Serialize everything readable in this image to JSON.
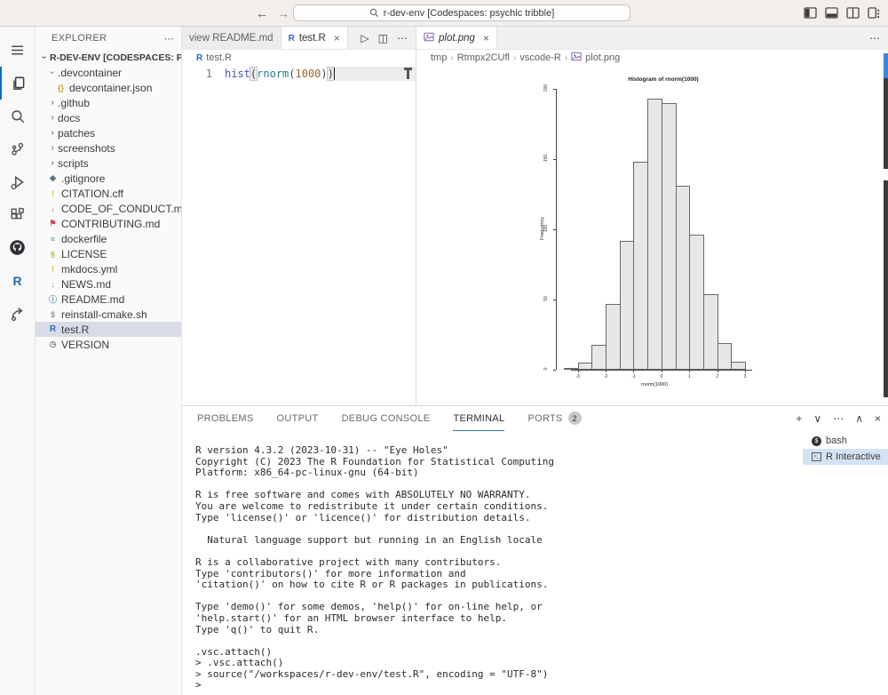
{
  "window": {
    "search_value": "r-dev-env [Codespaces: psychic tribble]",
    "back_arrow": "←",
    "forward_arrow": "→"
  },
  "colors": {
    "accent_blue": "#3a86e0",
    "edge_dark": "#3c3c3c",
    "tree_selection": "#d9dce6",
    "terminal_selection": "#d3e3f5"
  },
  "activity_bar": {
    "items": [
      {
        "name": "menu"
      },
      {
        "name": "explorer",
        "active": true
      },
      {
        "name": "search"
      },
      {
        "name": "source-control"
      },
      {
        "name": "run-debug"
      },
      {
        "name": "extensions"
      },
      {
        "name": "github"
      },
      {
        "name": "r"
      },
      {
        "name": "live-share"
      }
    ]
  },
  "sidebar": {
    "title": "EXPLORER",
    "more_label": "⋯",
    "tree": [
      {
        "label": "R-DEV-ENV [CODESPACES: PSYCHIC...",
        "chev": "down",
        "indent": 0,
        "bold": true
      },
      {
        "label": ".devcontainer",
        "chev": "down",
        "indent": 1
      },
      {
        "label": "devcontainer.json",
        "icon": "braces",
        "color": "#c9a227",
        "indent": 2
      },
      {
        "label": ".github",
        "chev": "right",
        "indent": 1
      },
      {
        "label": "docs",
        "chev": "right",
        "indent": 1
      },
      {
        "label": "patches",
        "chev": "right",
        "indent": 1
      },
      {
        "label": "screenshots",
        "chev": "right",
        "indent": 1
      },
      {
        "label": "scripts",
        "chev": "right",
        "indent": 1
      },
      {
        "label": ".gitignore",
        "icon": "diamond",
        "color": "#5d7282",
        "indent": 1
      },
      {
        "label": "CITATION.cff",
        "icon": "excl",
        "color": "#d4b83c",
        "indent": 1
      },
      {
        "label": "CODE_OF_CONDUCT.md",
        "icon": "md",
        "color": "#519aba",
        "indent": 1
      },
      {
        "label": "CONTRIBUTING.md",
        "icon": "flag",
        "color": "#cc3e44",
        "indent": 1
      },
      {
        "label": "dockerfile",
        "icon": "whale",
        "color": "#519aba",
        "indent": 1
      },
      {
        "label": "LICENSE",
        "icon": "law",
        "color": "#b7b73b",
        "indent": 1
      },
      {
        "label": "mkdocs.yml",
        "icon": "excl",
        "color": "#d4b83c",
        "indent": 1
      },
      {
        "label": "NEWS.md",
        "icon": "md",
        "color": "#519aba",
        "indent": 1
      },
      {
        "label": "README.md",
        "icon": "info",
        "color": "#498ba7",
        "indent": 1
      },
      {
        "label": "reinstall-cmake.sh",
        "icon": "dollar",
        "color": "#8a9aa6",
        "indent": 1
      },
      {
        "label": "test.R",
        "icon": "r",
        "color": "#276dc3",
        "indent": 1,
        "selected": true
      },
      {
        "label": "VERSION",
        "icon": "clock",
        "color": "#6d8086",
        "indent": 1
      }
    ]
  },
  "editor_groups": [
    {
      "tabs": [
        {
          "label": "view README.md"
        },
        {
          "label": "test.R",
          "icon": "r",
          "active": true,
          "close": true
        }
      ],
      "actions": [
        "run",
        "split",
        "more"
      ],
      "breadcrumb": [
        {
          "icon": "r",
          "label": "test.R"
        }
      ],
      "code": {
        "line_number": "1",
        "tokens": [
          {
            "t": "hist",
            "c": "#4453c0"
          },
          {
            "t": "(",
            "c": "#444",
            "boxed": true
          },
          {
            "t": "rnorm",
            "c": "#267f99"
          },
          {
            "t": "(",
            "c": "#444"
          },
          {
            "t": "1000",
            "c": "#a0642c"
          },
          {
            "t": ")",
            "c": "#444"
          },
          {
            "t": ")",
            "c": "#444",
            "boxed": true
          }
        ]
      }
    },
    {
      "tabs": [
        {
          "label": "plot.png",
          "icon": "image",
          "active": true,
          "italic": true,
          "close": true
        }
      ],
      "actions": [
        "more"
      ],
      "breadcrumb": [
        {
          "label": "tmp"
        },
        {
          "label": "Rtmpx2CUfl"
        },
        {
          "label": "vscode-R"
        },
        {
          "icon": "image",
          "label": "plot.png"
        }
      ]
    }
  ],
  "chart_data": {
    "type": "bar",
    "subtype": "histogram",
    "title": "Histogram of rnorm(1000)",
    "xlabel": "rnorm(1000)",
    "ylabel": "Frequency",
    "bin_start": -3.5,
    "bin_width": 0.5,
    "counts": [
      1,
      5,
      18,
      47,
      92,
      148,
      193,
      190,
      131,
      96,
      54,
      19,
      6
    ],
    "x_ticks": [
      -3,
      -2,
      -1,
      0,
      1,
      2,
      3
    ],
    "y_ticks": [
      0,
      50,
      100,
      150,
      200
    ],
    "ylim": [
      0,
      200
    ],
    "bar_fill": "#e7e7e7",
    "bar_stroke": "#686868",
    "grid": false,
    "legend": false
  },
  "panel": {
    "tabs": [
      {
        "label": "PROBLEMS"
      },
      {
        "label": "OUTPUT"
      },
      {
        "label": "DEBUG CONSOLE"
      },
      {
        "label": "TERMINAL",
        "active": true
      },
      {
        "label": "PORTS",
        "badge": "2"
      }
    ],
    "actions": [
      "new-terminal",
      "terminal-dropdown",
      "more",
      "maximize",
      "close"
    ],
    "terminal_lines": [
      "R version 4.3.2 (2023-10-31) -- \"Eye Holes\"",
      "Copyright (C) 2023 The R Foundation for Statistical Computing",
      "Platform: x86_64-pc-linux-gnu (64-bit)",
      "",
      "R is free software and comes with ABSOLUTELY NO WARRANTY.",
      "You are welcome to redistribute it under certain conditions.",
      "Type 'license()' or 'licence()' for distribution details.",
      "",
      "  Natural language support but running in an English locale",
      "",
      "R is a collaborative project with many contributors.",
      "Type 'contributors()' for more information and",
      "'citation()' on how to cite R or R packages in publications.",
      "",
      "Type 'demo()' for some demos, 'help()' for on-line help, or",
      "'help.start()' for an HTML browser interface to help.",
      "Type 'q()' to quit R.",
      "",
      ".vsc.attach()",
      "> .vsc.attach()",
      "> source(\"/workspaces/r-dev-env/test.R\", encoding = \"UTF-8\")",
      ">"
    ],
    "terminal_list": [
      {
        "label": "bash",
        "icon": "bash"
      },
      {
        "label": "R Interactive",
        "icon": "terminal",
        "selected": true
      }
    ]
  }
}
